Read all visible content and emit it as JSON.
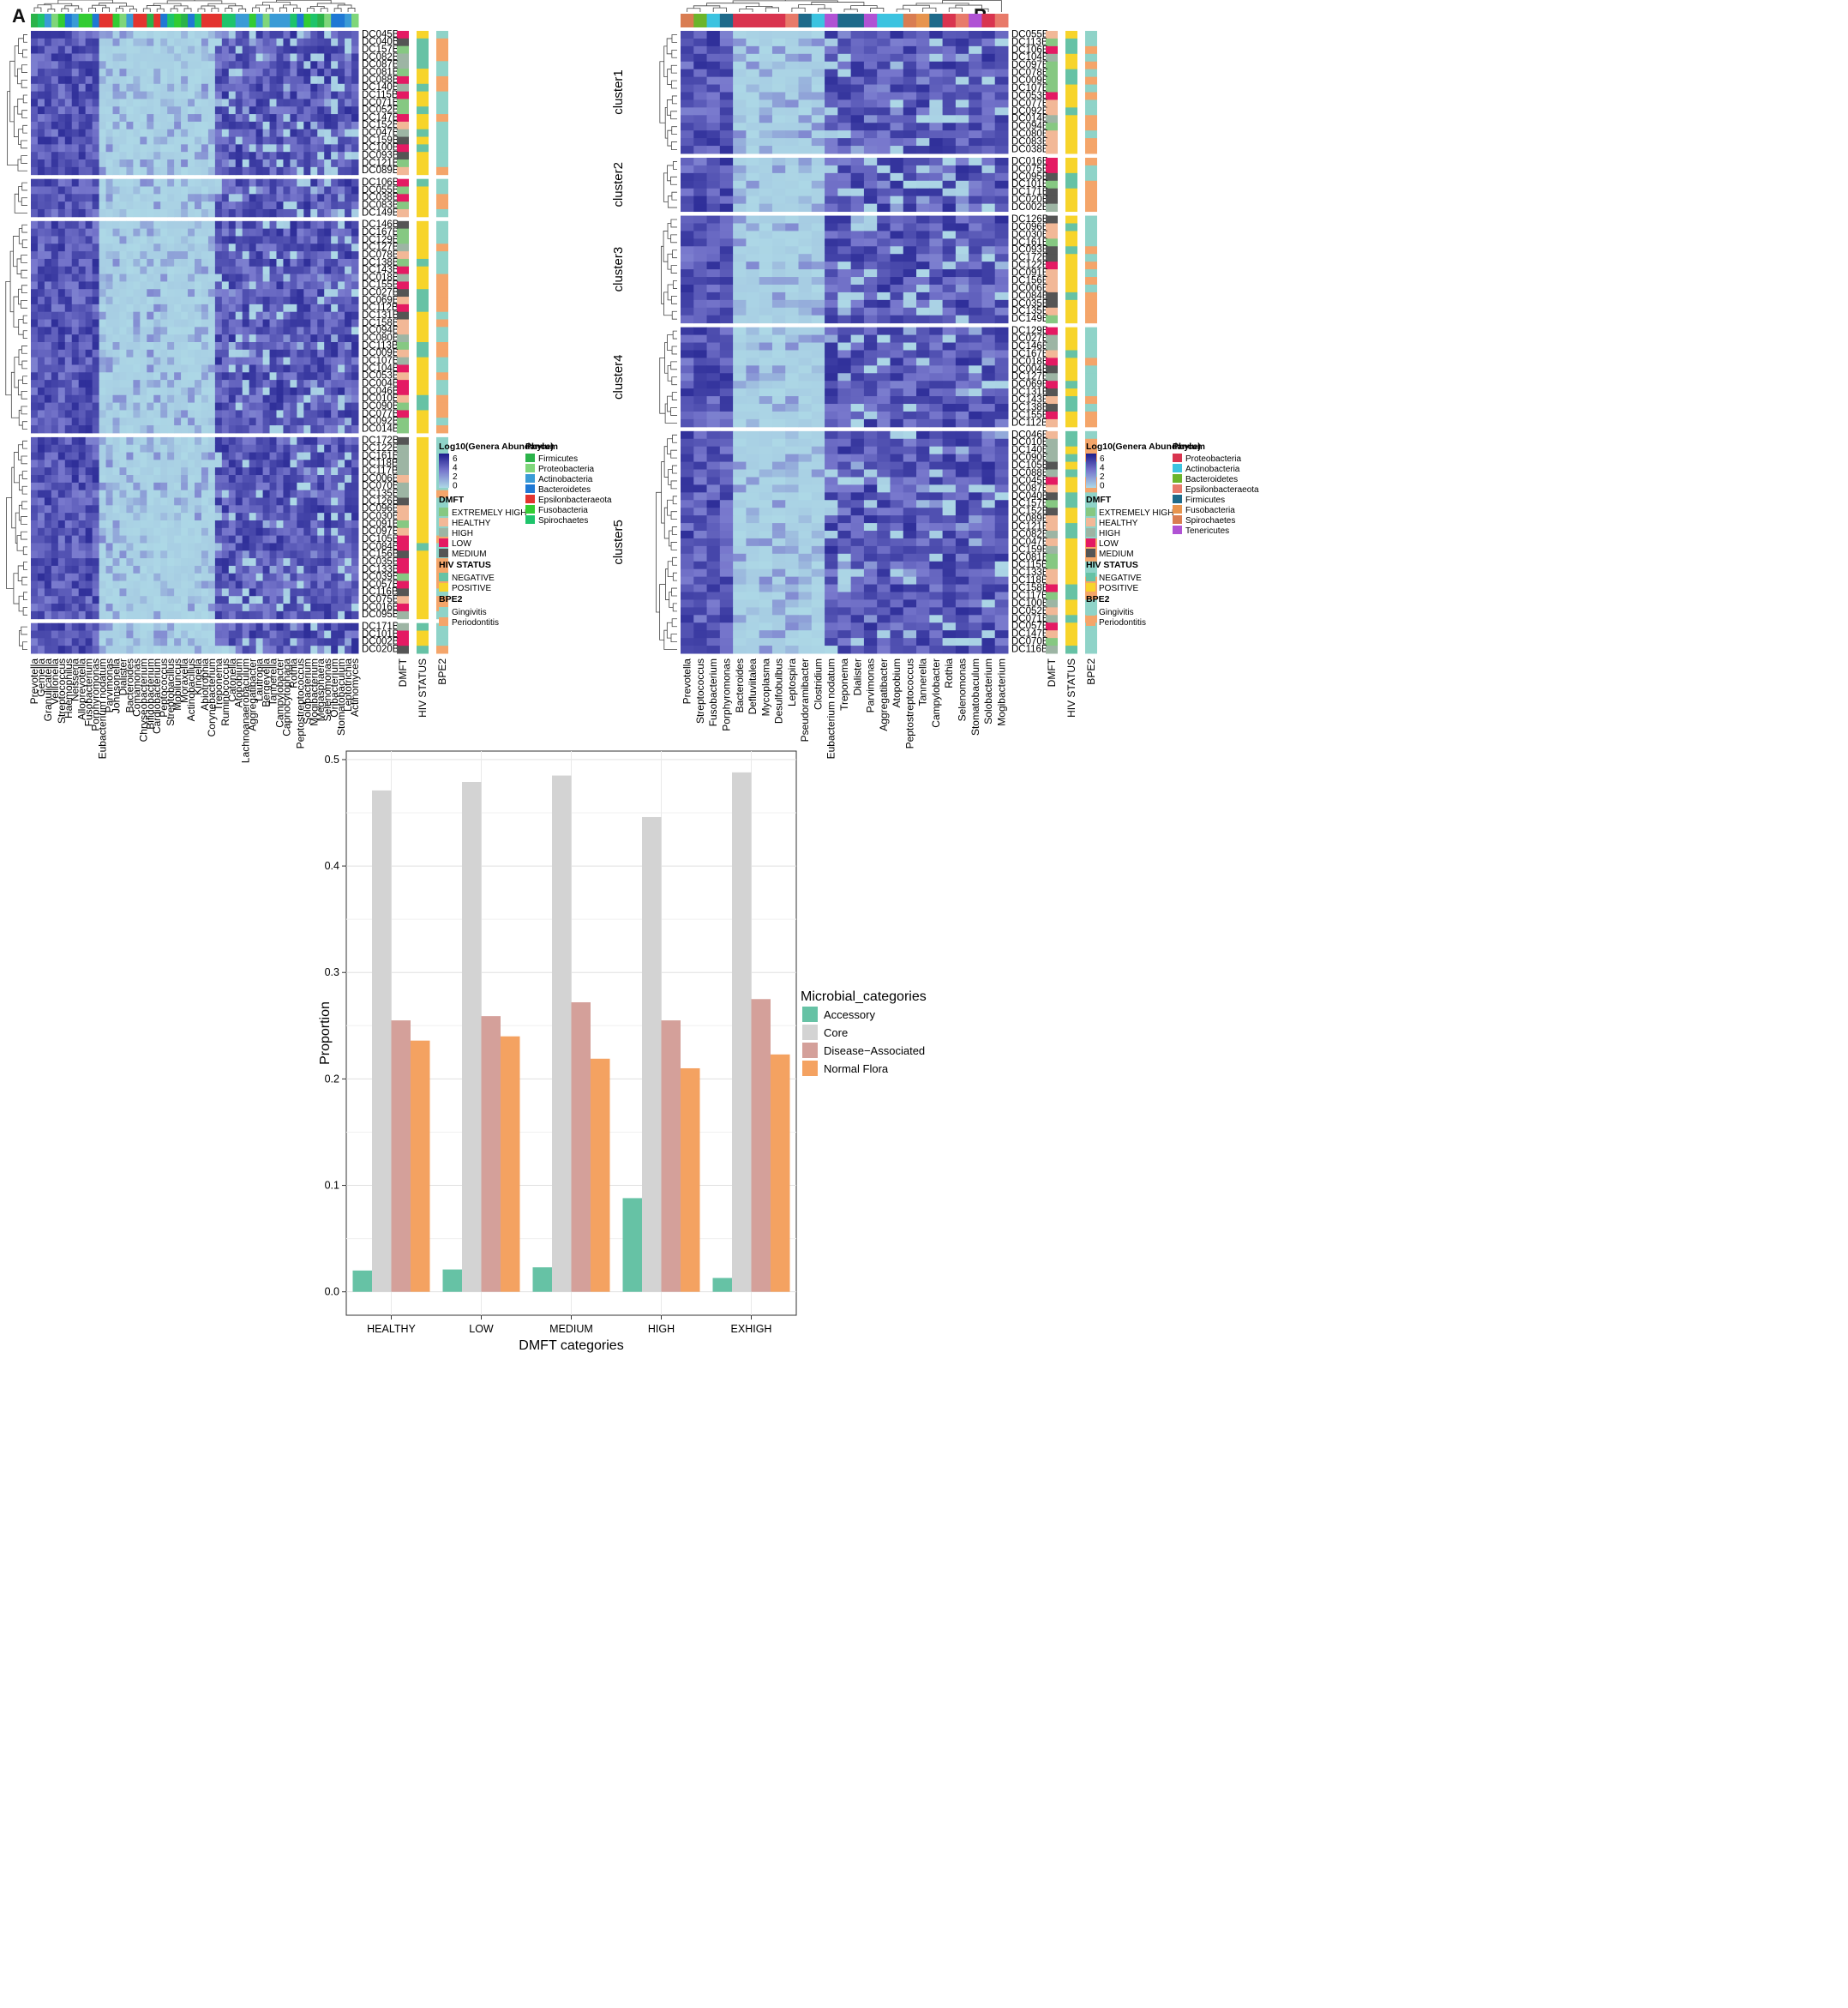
{
  "panels": {
    "a": "A",
    "b": "B"
  },
  "heatmap_a": {
    "legend_title": "Log10(Genera Abundance)",
    "legend_ticks": [
      "6",
      "4",
      "2",
      "0"
    ],
    "clusters": [
      "cluster1",
      "cluster2",
      "cluster3",
      "cluster4",
      "cluster5"
    ],
    "rows": [
      [
        "DC045B",
        "DC040B",
        "DC157B",
        "DC082B",
        "DC087B",
        "DC081B",
        "DC088B",
        "DC140B",
        "DC115B",
        "DC071B",
        "DC052B",
        "DC147B",
        "DC152B",
        "DC047B",
        "DC159B",
        "DC100B",
        "DC093B",
        "DC121B",
        "DC089B"
      ],
      [
        "DC106B",
        "DC055B",
        "DC038B",
        "DC083B",
        "DC149B"
      ],
      [
        "DC146B",
        "DC167B",
        "DC129B",
        "DC127B",
        "DC078B",
        "DC138B",
        "DC143B",
        "DC018B",
        "DC155B",
        "DC027B",
        "DC069B",
        "DC112B",
        "DC131B",
        "DC158B",
        "DC094B",
        "DC080B",
        "DC113B",
        "DC009B",
        "DC107B",
        "DC104B",
        "DC053B",
        "DC004B",
        "DC046B",
        "DC010B",
        "DC090B",
        "DC077B",
        "DC092B",
        "DC014B"
      ],
      [
        "DC172B",
        "DC122B",
        "DC161B",
        "DC118B",
        "DC117B",
        "DC006B",
        "DC070B",
        "DC135B",
        "DC126B",
        "DC096B",
        "DC030B",
        "DC091B",
        "DC097B",
        "DC105B",
        "DC084B",
        "DC156B",
        "DC035B",
        "DC133B",
        "DC039B",
        "DC057B",
        "DC116B",
        "DC075B",
        "DC016B",
        "DC095B"
      ],
      [
        "DC171B",
        "DC101B",
        "DC002B",
        "DC020B"
      ]
    ],
    "columns": [
      "Prevotella",
      "Gemella",
      "Granulicatella",
      "Veillonella",
      "Streptococcus",
      "Haemophilus",
      "Neisseria",
      "Alloprevotella",
      "Fusobacterium",
      "Porphyromonas",
      "Eubacterium nodatum",
      "Parvimonas",
      "Johnsonella",
      "Dialister",
      "Bacteroides",
      "Comamonas",
      "Chryseobacterium",
      "Bifidobacterium",
      "Cardiobacterium",
      "Peptococcus",
      "Streptobacillus",
      "Mobiluncus",
      "Moraxella",
      "Actinobacillus",
      "Kingella",
      "Abiotrophia",
      "Corynebacterium",
      "Treponema",
      "Ruminococcus",
      "Catonella",
      "Atopobium",
      "Lachnoanaerobaculum",
      "Aggregatibacter",
      "Lautropia",
      "Bergeyella",
      "Tannerella",
      "Campylobacter",
      "Capnocytophaga",
      "Rothia",
      "Peptostreptococcus",
      "Solobacterium",
      "Mogibacterium",
      "Megasphaera",
      "Selenomonas",
      "Oribacterium",
      "Stomatobaculum",
      "Leptotrichia",
      "Actinomyces"
    ],
    "annotation_labels": [
      "DMFT",
      "HIV STATUS",
      "BPE2"
    ],
    "legend_groups": [
      {
        "title": "DMFT",
        "items": [
          [
            "EXTREMELY HIGH",
            "#86c882"
          ],
          [
            "HEALTHY",
            "#f2b897"
          ],
          [
            "HIGH",
            "#9db5a4"
          ],
          [
            "LOW",
            "#e41a63"
          ],
          [
            "MEDIUM",
            "#555555"
          ]
        ]
      },
      {
        "title": "HIV STATUS",
        "items": [
          [
            "NEGATIVE",
            "#66c2a5"
          ],
          [
            "POSITIVE",
            "#f7d42b"
          ]
        ]
      },
      {
        "title": "BPE2",
        "items": [
          [
            "Gingivitis",
            "#8fd3c8"
          ],
          [
            "Periodontitis",
            "#f4a56a"
          ]
        ]
      }
    ],
    "phylum": {
      "title": "Phylum",
      "items": [
        [
          "Firmicutes",
          "#2bb34a"
        ],
        [
          "Proteobacteria",
          "#7fd67a"
        ],
        [
          "Actinobacteria",
          "#3a9bd6"
        ],
        [
          "Bacteroidetes",
          "#1f78d4"
        ],
        [
          "Epsilonbacteraeota",
          "#e3342f"
        ],
        [
          "Fusobacteria",
          "#33cc33"
        ],
        [
          "Spirochaetes",
          "#1ec46b"
        ]
      ]
    }
  },
  "heatmap_b": {
    "legend_title": "Log10(Genera Abundance)",
    "legend_ticks": [
      "6",
      "4",
      "2",
      "0"
    ],
    "clusters": [
      "cluster1",
      "cluster2",
      "cluster3",
      "cluster4",
      "cluster5"
    ],
    "rows": [
      [
        "DC055B",
        "DC113B",
        "DC106B",
        "DC104B",
        "DC097B",
        "DC078B",
        "DC009B",
        "DC107B",
        "DC053B",
        "DC077B",
        "DC092B",
        "DC014B",
        "DC094B",
        "DC080B",
        "DC083B",
        "DC038B"
      ],
      [
        "DC016B",
        "DC075B",
        "DC095B",
        "DC101B",
        "DC171B",
        "DC020B",
        "DC002B"
      ],
      [
        "DC126B",
        "DC096B",
        "DC030B",
        "DC161B",
        "DC093B",
        "DC172B",
        "DC122B",
        "DC091B",
        "DC156B",
        "DC006B",
        "DC084B",
        "DC035B",
        "DC135B",
        "DC149B"
      ],
      [
        "DC129B",
        "DC027B",
        "DC146B",
        "DC167B",
        "DC018B",
        "DC004B",
        "DC127B",
        "DC069B",
        "DC131B",
        "DC143B",
        "DC138B",
        "DC155B",
        "DC112B"
      ],
      [
        "DC046B",
        "DC010B",
        "DC140B",
        "DC090B",
        "DC105B",
        "DC088B",
        "DC045B",
        "DC087B",
        "DC040B",
        "DC157B",
        "DC152B",
        "DC089B",
        "DC121B",
        "DC082B",
        "DC047B",
        "DC159B",
        "DC081B",
        "DC115B",
        "DC133B",
        "DC118B",
        "DC158B",
        "DC117B",
        "DC100B",
        "DC052B",
        "DC071B",
        "DC057B",
        "DC147B",
        "DC070B",
        "DC116B"
      ]
    ],
    "columns": [
      "Prevotella",
      "Streptococcus",
      "Fusobacterium",
      "Porphyromonas",
      "Bacteroides",
      "Defluviitalea",
      "Mycoplasma",
      "Desulfobulbus",
      "Leptospira",
      "Pseudoramibacter",
      "Clostridium",
      "Eubacterium nodatum",
      "Treponema",
      "Dialister",
      "Parvimonas",
      "Aggregatibacter",
      "Atopobium",
      "Peptostreptococcus",
      "Tannerella",
      "Campylobacter",
      "Rothia",
      "Selenomonas",
      "Stomatobaculum",
      "Solobacterium",
      "Mogibacterium"
    ],
    "annotation_labels": [
      "DMFT",
      "HIV STATUS",
      "BPE2"
    ],
    "legend_groups": [
      {
        "title": "DMFT",
        "items": [
          [
            "EXTREMELY HIGH",
            "#86c882"
          ],
          [
            "HEALTHY",
            "#f2b897"
          ],
          [
            "HIGH",
            "#9db5a4"
          ],
          [
            "LOW",
            "#e41a63"
          ],
          [
            "MEDIUM",
            "#555555"
          ]
        ]
      },
      {
        "title": "HIV STATUS",
        "items": [
          [
            "NEGATIVE",
            "#66c2a5"
          ],
          [
            "POSITIVE",
            "#f7d42b"
          ]
        ]
      },
      {
        "title": "BPE2",
        "items": [
          [
            "Gingivitis",
            "#8fd3c8"
          ],
          [
            "Periodontitis",
            "#f4a56a"
          ]
        ]
      }
    ],
    "phylum": {
      "title": "Phylum",
      "items": [
        [
          "Proteobacteria",
          "#d9344f"
        ],
        [
          "Actinobacteria",
          "#3cc3e0"
        ],
        [
          "Bacteroidetes",
          "#6bb52b"
        ],
        [
          "Epsilonbacteraeota",
          "#e87a6a"
        ],
        [
          "Firmicutes",
          "#1e6a8a"
        ],
        [
          "Fusobacteria",
          "#e7944e"
        ],
        [
          "Spirochaetes",
          "#d97d52"
        ],
        [
          "Tenericutes",
          "#b052d4"
        ]
      ]
    }
  },
  "chart_data": {
    "type": "bar",
    "categories": [
      "HEALTHY",
      "LOW",
      "MEDIUM",
      "HIGH",
      "EXHIGH"
    ],
    "series": [
      {
        "name": "Accessory",
        "color": "#66c2a5",
        "values": [
          0.02,
          0.021,
          0.023,
          0.088,
          0.013
        ]
      },
      {
        "name": "Core",
        "color": "#d3d3d3",
        "values": [
          0.471,
          0.479,
          0.485,
          0.446,
          0.488
        ]
      },
      {
        "name": "Disease−Associated",
        "color": "#d4a09a",
        "values": [
          0.255,
          0.259,
          0.272,
          0.255,
          0.275
        ]
      },
      {
        "name": "Normal Flora",
        "color": "#f4a261",
        "values": [
          0.236,
          0.24,
          0.219,
          0.21,
          0.223
        ]
      }
    ],
    "xlabel": "DMFT categories",
    "ylabel": "Proportion",
    "ylim": [
      -0.022,
      0.508
    ],
    "yticks": [
      "0.0",
      "0.1",
      "0.2",
      "0.3",
      "0.4",
      "0.5"
    ],
    "legend_title": "Microbial_categories",
    "legend_position": "right"
  }
}
